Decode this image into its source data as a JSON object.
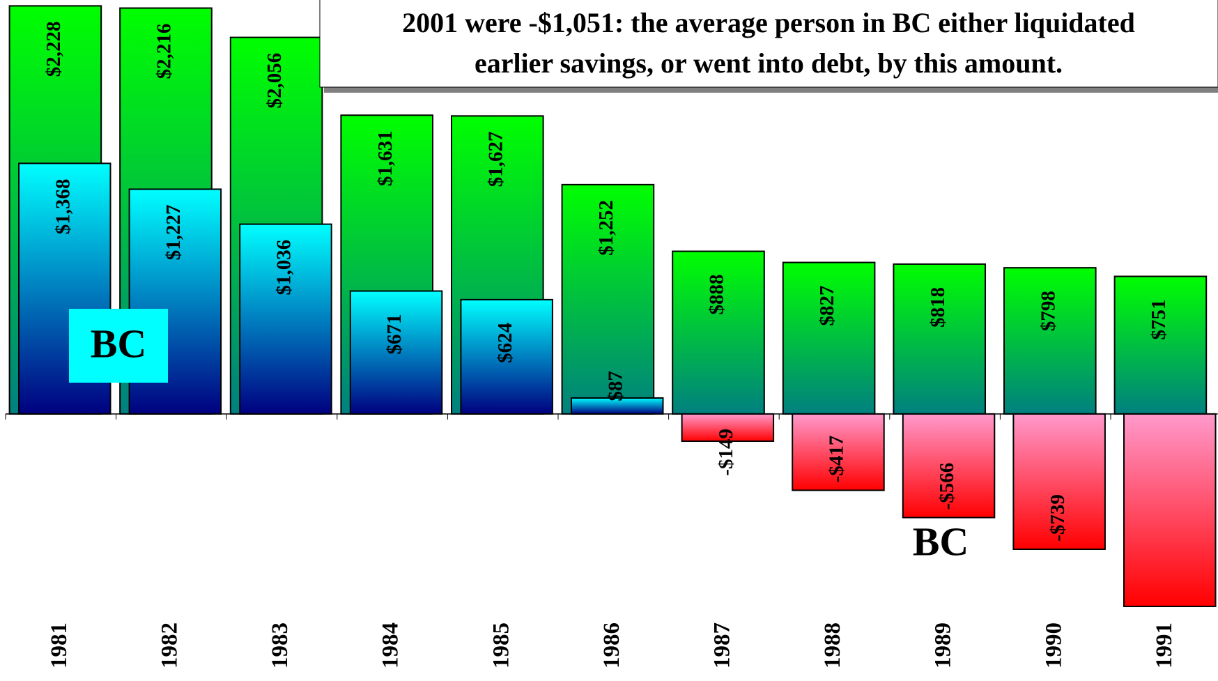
{
  "chart_data": {
    "type": "bar",
    "title": [
      "2001 were -$1,051: the average person in BC either liquidated",
      "earlier savings, or went into debt, by this amount."
    ],
    "categories": [
      "1981",
      "1982",
      "1983",
      "1984",
      "1985",
      "1986",
      "1987",
      "1988",
      "1989",
      "1990",
      "1991"
    ],
    "series": [
      {
        "color": [
          "#00ff00",
          "#008080"
        ],
        "values": [
          2228,
          2216,
          2056,
          1631,
          1627,
          1252,
          888,
          827,
          818,
          798,
          751
        ],
        "value_labels": [
          "$2,228",
          "$2,216",
          "$2,056",
          "$1,631",
          "$1,627",
          "$1,252",
          "$888",
          "$827",
          "$818",
          "$798",
          "$751"
        ]
      },
      {
        "name": "BC",
        "color": [
          "#00ffff",
          "#000080"
        ],
        "negative_color": [
          "#ff99cc",
          "#ff0000"
        ],
        "values": [
          1368,
          1227,
          1036,
          671,
          624,
          87,
          -149,
          -417,
          -566,
          -739,
          -1051
        ],
        "value_labels": [
          "$1,368",
          "$1,227",
          "$1,036",
          "$671",
          "$624",
          "$87",
          "-$149",
          "-$417",
          "-$566",
          "-$739",
          null
        ]
      }
    ],
    "ylim": [
      -1150,
      2260
    ]
  }
}
